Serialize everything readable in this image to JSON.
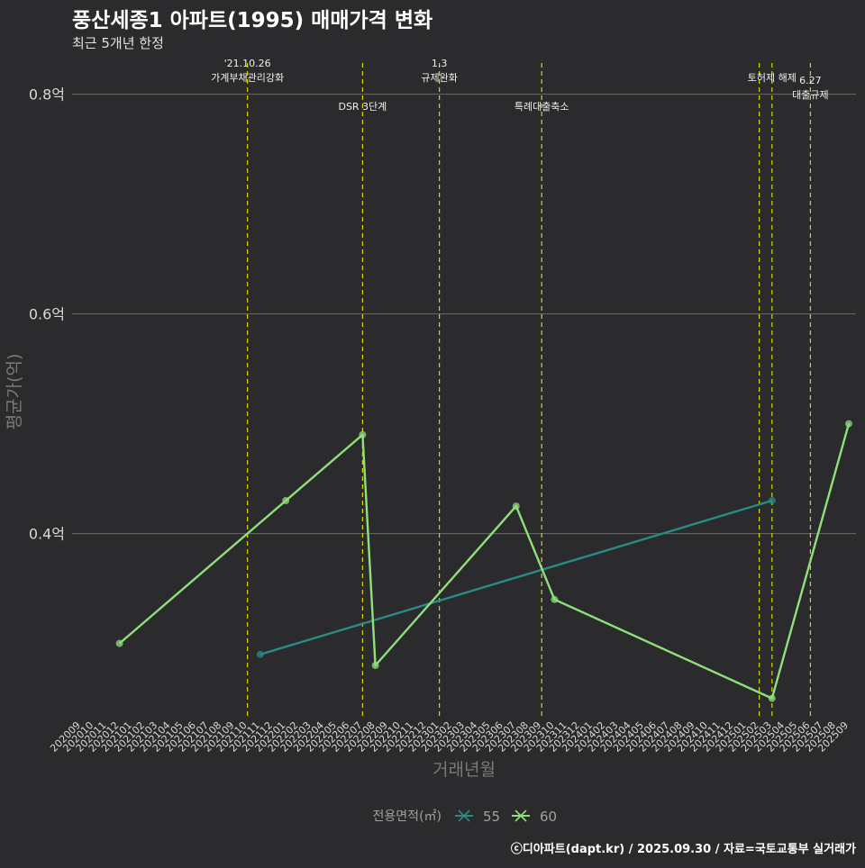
{
  "chart_data": {
    "type": "line",
    "title": "풍산세종1 아파트(1995) 매매가격 변화",
    "subtitle": "최근 5개년 한정",
    "xlabel": "거래년월",
    "ylabel": "평균가(억)",
    "ylim": [
      0.23,
      0.83
    ],
    "y_ticks": [
      {
        "value": 0.4,
        "label": "0.4억"
      },
      {
        "value": 0.6,
        "label": "0.6억"
      },
      {
        "value": 0.8,
        "label": "0.8억"
      }
    ],
    "grid": true,
    "x_categories": [
      "202009",
      "202010",
      "202011",
      "202012",
      "202101",
      "202102",
      "202103",
      "202104",
      "202105",
      "202106",
      "202107",
      "202108",
      "202109",
      "202110",
      "202111",
      "202112",
      "202201",
      "202202",
      "202203",
      "202204",
      "202205",
      "202206",
      "202207",
      "202208",
      "202209",
      "202210",
      "202211",
      "202212",
      "202301",
      "202302",
      "202303",
      "202304",
      "202305",
      "202306",
      "202307",
      "202308",
      "202309",
      "202310",
      "202311",
      "202312",
      "202401",
      "202402",
      "202403",
      "202404",
      "202405",
      "202406",
      "202407",
      "202408",
      "202409",
      "202410",
      "202411",
      "202412",
      "202501",
      "202502",
      "202503",
      "202504",
      "202505",
      "202506",
      "202507",
      "202508",
      "202509"
    ],
    "series": [
      {
        "name": "55",
        "color": "#2a8a86",
        "points": [
          {
            "x": "202111",
            "y": 0.29
          },
          {
            "x": "202503",
            "y": 0.43
          }
        ]
      },
      {
        "name": "60",
        "color": "#8fe07a",
        "points": [
          {
            "x": "202012",
            "y": 0.3
          },
          {
            "x": "202201",
            "y": 0.43
          },
          {
            "x": "202207",
            "y": 0.49
          },
          {
            "x": "202208",
            "y": 0.28
          },
          {
            "x": "202307",
            "y": 0.425
          },
          {
            "x": "202310",
            "y": 0.34
          },
          {
            "x": "202503",
            "y": 0.25
          },
          {
            "x": "202509",
            "y": 0.5
          }
        ]
      }
    ],
    "events": [
      {
        "x": "202110",
        "label": [
          "'21.10.26",
          "가계부채관리강화"
        ],
        "row": 0
      },
      {
        "x": "202207",
        "label": [
          "DSR 3단계"
        ],
        "row": 1
      },
      {
        "x": "202301",
        "label": [
          "1.3",
          "규제완화"
        ],
        "row": 0
      },
      {
        "x": "202309",
        "label": [
          "특례대출축소"
        ],
        "row": 1
      },
      {
        "x": "202502",
        "label": [],
        "row": 0
      },
      {
        "x": "202503",
        "label": [
          "토허제 해제"
        ],
        "row": 0
      },
      {
        "x": "202506",
        "label": [
          "6.27",
          "대출규제"
        ],
        "row": 2
      }
    ],
    "legend": {
      "title": "전용면적(㎡)",
      "position": "bottom"
    },
    "caption": "ⓒ디아파트(dapt.kr) / 2025.09.30 / 자료=국토교통부 실거래가"
  }
}
